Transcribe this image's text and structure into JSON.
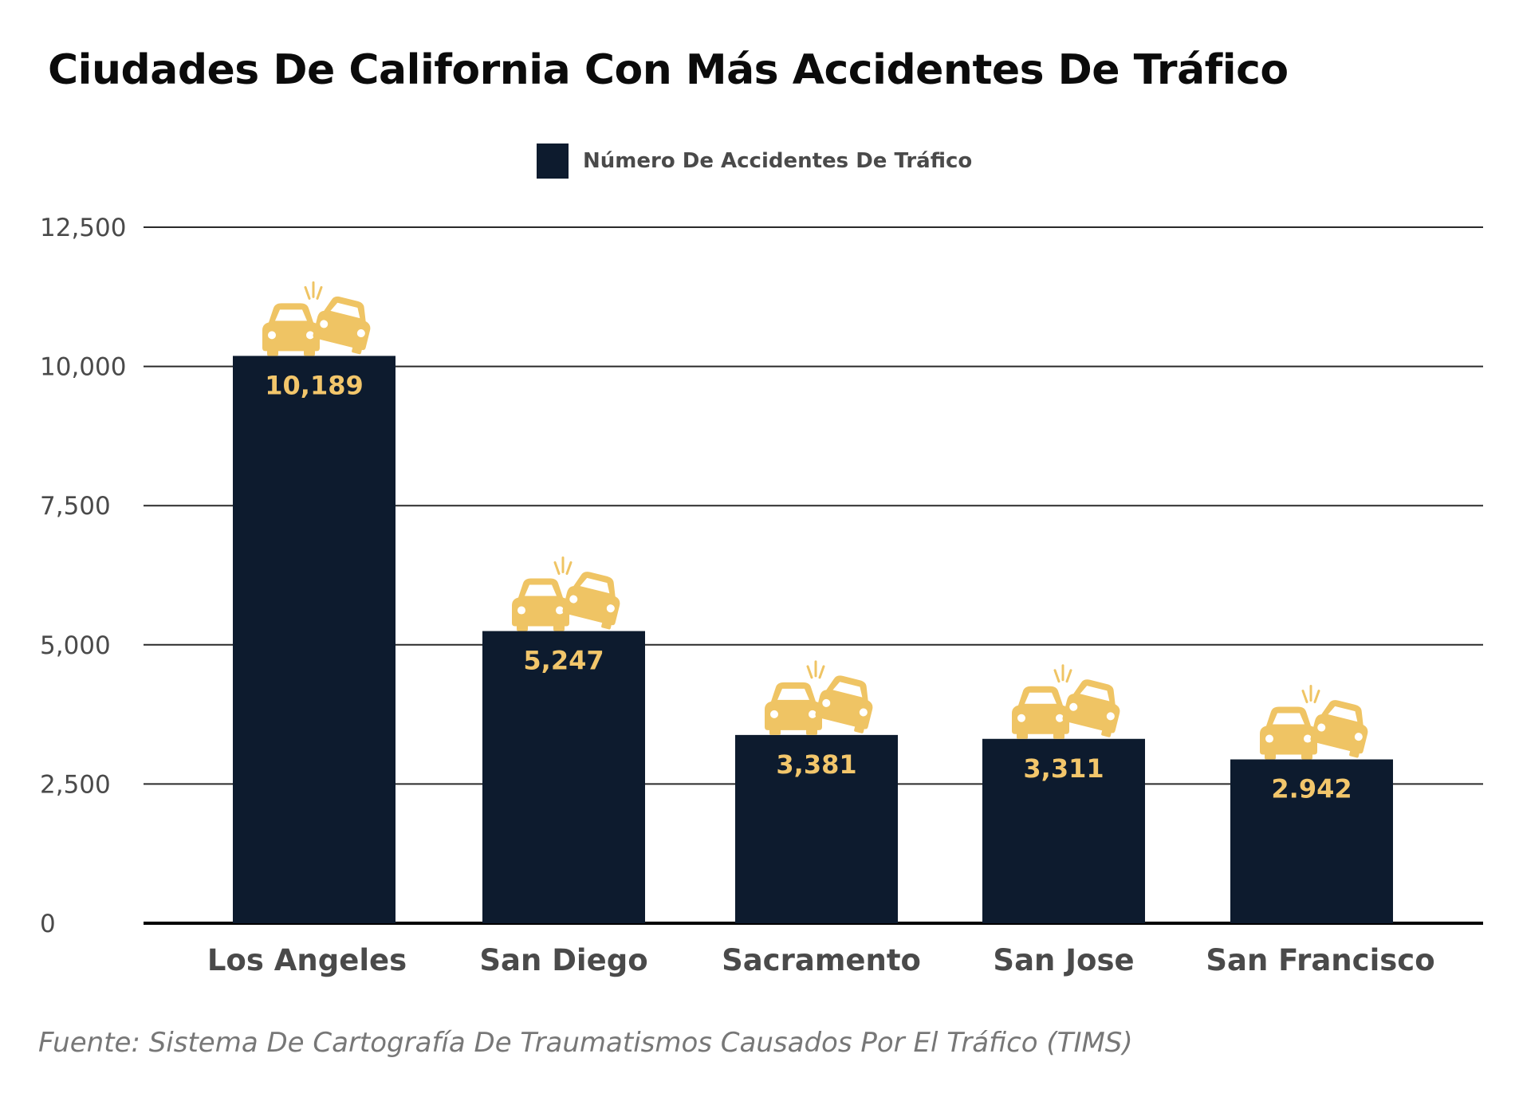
{
  "title": "Ciudades De California Con Más Accidentes De Tráfico",
  "source": "Fuente: Sistema De Cartografía De Traumatismos Causados Por El Tráfico (TIMS)",
  "legend": {
    "label": "Número De Accidentes De Tráfico",
    "color": "#0d1b2e"
  },
  "colors": {
    "bar": "#0d1b2e",
    "value_label": "#f2c66b",
    "icon": "#efc464",
    "grid": "#2a2a2a",
    "axis_text": "#4a4a4a"
  },
  "icon_name": "car-crash-icon",
  "chart_data": {
    "type": "bar",
    "title": "Ciudades De California Con Más Accidentes De Tráfico",
    "categories": [
      "Los Angeles",
      "San Diego",
      "Sacramento",
      "San Jose",
      "San Francisco"
    ],
    "series": [
      {
        "name": "Número De Accidentes De Tráfico",
        "values": [
          10189,
          5247,
          3381,
          3311,
          2942
        ],
        "labels": [
          "10,189",
          "5,247",
          "3,381",
          "3,311",
          "2.942"
        ]
      }
    ],
    "y_ticks": [
      0,
      2500,
      5000,
      7500,
      10000,
      12500
    ],
    "y_tick_labels": [
      "0",
      "2,500",
      "5,000",
      "7,500",
      "10,000",
      "12,500"
    ],
    "ylim": [
      0,
      12500
    ],
    "grid": true,
    "legend_position": "top-center",
    "xlabel": "",
    "ylabel": ""
  }
}
